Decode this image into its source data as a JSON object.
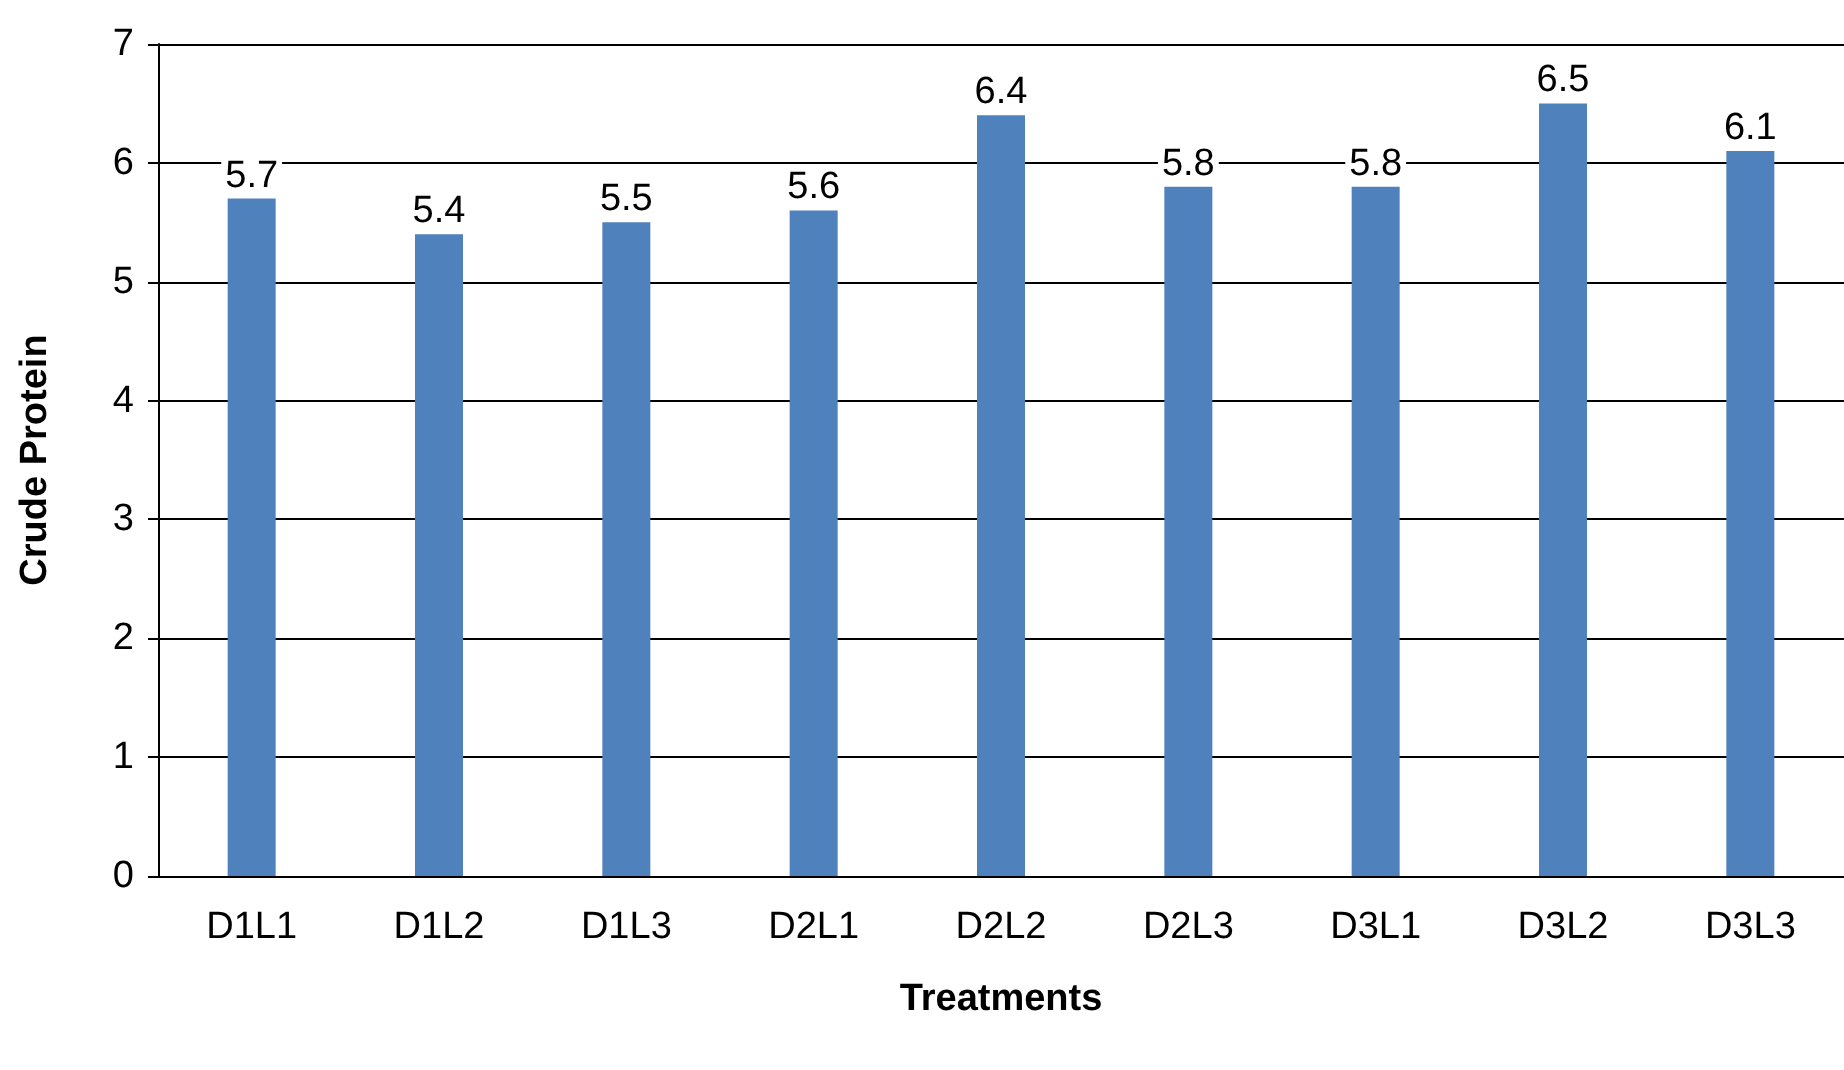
{
  "chart_data": {
    "type": "bar",
    "xlabel": "Treatments",
    "ylabel": "Crude Protein",
    "categories": [
      "D1L1",
      "D1L2",
      "D1L3",
      "D2L1",
      "D2L2",
      "D2L3",
      "D3L1",
      "D3L2",
      "D3L3"
    ],
    "values": [
      5.7,
      5.4,
      5.5,
      5.6,
      6.4,
      5.8,
      5.8,
      6.5,
      6.1
    ],
    "color": "#4f81bd",
    "ylim": [
      0,
      7
    ],
    "yticks": [
      0,
      1,
      2,
      3,
      4,
      5,
      6,
      7
    ],
    "grid": "y",
    "data_labels": true
  }
}
